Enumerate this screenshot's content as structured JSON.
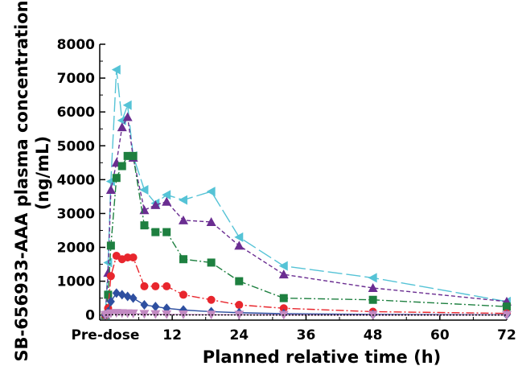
{
  "chart_data": {
    "type": "line",
    "xlabel": "Planned relative time (h)",
    "ylabel_line1": "SB-656933-AAA plasma concentration",
    "ylabel_line2": "(ng/mL)",
    "xlim": [
      -1,
      72
    ],
    "ylim": [
      -150,
      8000
    ],
    "x_ticks": [
      {
        "value": 0,
        "label": "Pre-dose"
      },
      {
        "value": 12,
        "label": "12"
      },
      {
        "value": 24,
        "label": "24"
      },
      {
        "value": 36,
        "label": "36"
      },
      {
        "value": 48,
        "label": "48"
      },
      {
        "value": 60,
        "label": "60"
      },
      {
        "value": 72,
        "label": "72"
      }
    ],
    "y_ticks": [
      0,
      1000,
      2000,
      3000,
      4000,
      5000,
      6000,
      7000,
      8000
    ],
    "grid": false,
    "series": [
      {
        "color": "#55c3d6",
        "marker": "triangle-left",
        "dash": "18,5",
        "x": [
          0,
          0.5,
          1,
          2,
          3,
          4,
          5,
          7,
          9,
          11,
          14,
          19,
          24,
          32,
          48,
          72
        ],
        "y": [
          0,
          1550,
          3950,
          7250,
          5750,
          6200,
          4700,
          3700,
          3300,
          3550,
          3400,
          3650,
          2300,
          1450,
          1100,
          400
        ]
      },
      {
        "color": "#6a2d91",
        "marker": "triangle-up",
        "dash": "5,3",
        "x": [
          0,
          0.5,
          1,
          2,
          3,
          4,
          5,
          7,
          9,
          11,
          14,
          19,
          24,
          32,
          48,
          72
        ],
        "y": [
          0,
          1250,
          3700,
          4500,
          5550,
          5850,
          4650,
          3100,
          3250,
          3350,
          2800,
          2750,
          2050,
          1200,
          800,
          400
        ]
      },
      {
        "color": "#1e8040",
        "marker": "square",
        "dash": "9,3,2,3",
        "x": [
          0,
          0.5,
          1,
          2,
          3,
          4,
          5,
          7,
          9,
          11,
          14,
          19,
          24,
          32,
          48,
          72
        ],
        "y": [
          0,
          600,
          2050,
          4050,
          4400,
          4700,
          4700,
          2650,
          2450,
          2450,
          1650,
          1550,
          1000,
          500,
          450,
          250
        ]
      },
      {
        "color": "#e8262d",
        "marker": "circle",
        "dash": "10,3,2,3",
        "x": [
          0,
          0.5,
          1,
          2,
          3,
          4,
          5,
          7,
          9,
          11,
          14,
          19,
          24,
          32,
          48,
          72
        ],
        "y": [
          0,
          200,
          1150,
          1750,
          1650,
          1700,
          1700,
          850,
          850,
          850,
          600,
          450,
          300,
          200,
          100,
          50
        ]
      },
      {
        "color": "#2e4fa0",
        "marker": "diamond",
        "dash": "",
        "x": [
          0,
          0.5,
          1,
          2,
          3,
          4,
          5,
          7,
          9,
          11,
          14,
          19,
          24,
          32,
          48,
          72
        ],
        "y": [
          0,
          100,
          400,
          650,
          600,
          550,
          500,
          300,
          250,
          200,
          150,
          100,
          70,
          40,
          20,
          10
        ]
      },
      {
        "color": "#c28ac2",
        "marker": "triangle-down",
        "dash": "",
        "x": [
          0,
          0.5,
          1,
          2,
          3,
          4,
          5,
          7,
          9,
          11,
          14,
          19,
          24,
          32,
          48,
          72
        ],
        "y": [
          0,
          20,
          50,
          60,
          55,
          50,
          45,
          30,
          25,
          20,
          15,
          10,
          8,
          5,
          3,
          2
        ]
      },
      {
        "color": "#000000",
        "marker": "none",
        "dash": "2,2",
        "x": [
          0,
          0.5,
          1,
          2,
          3,
          4,
          5,
          7,
          9,
          11,
          14,
          19,
          24,
          32,
          48,
          72
        ],
        "y": [
          0,
          5,
          10,
          10,
          10,
          10,
          10,
          8,
          6,
          5,
          4,
          3,
          2,
          1,
          1,
          0
        ]
      }
    ]
  }
}
